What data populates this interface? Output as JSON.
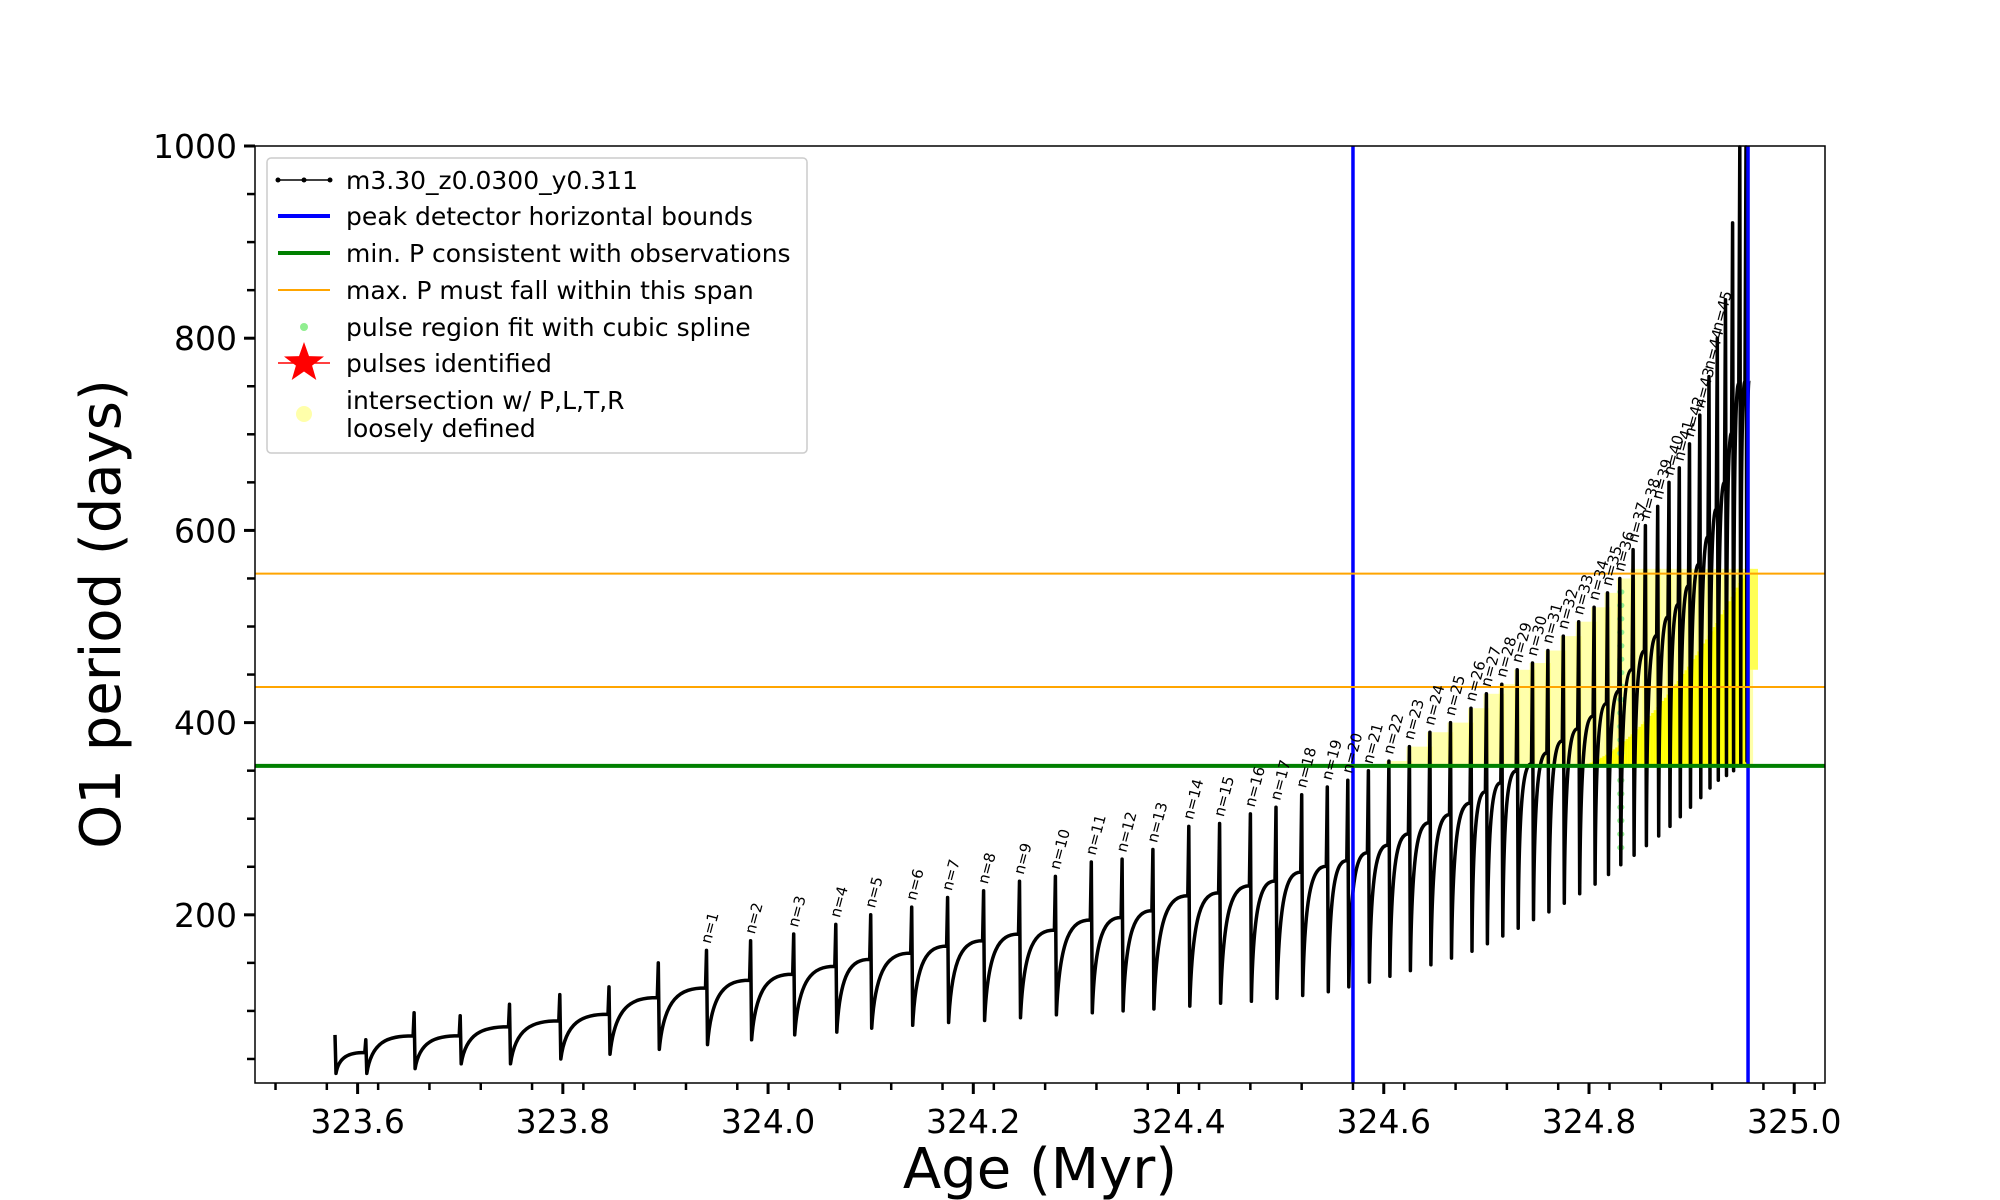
{
  "chart_data": {
    "type": "line",
    "title": "",
    "xlabel": "Age (Myr)",
    "ylabel": "O1 period (days)",
    "xlim": [
      323.5,
      325.03
    ],
    "ylim": [
      25,
      1000
    ],
    "x_ticks": [
      323.6,
      323.8,
      324.0,
      324.2,
      324.4,
      324.6,
      324.8,
      325.0
    ],
    "x_tick_labels": [
      "323.6",
      "323.8",
      "324.0",
      "324.2",
      "324.4",
      "324.6",
      "324.8",
      "325.0"
    ],
    "y_ticks": [
      200,
      400,
      600,
      800,
      1000
    ],
    "y_tick_labels": [
      "200",
      "400",
      "600",
      "800",
      "1000"
    ],
    "grid": false,
    "legend_position": "top-left",
    "legend": [
      {
        "label": "m3.30_z0.0300_y0.311",
        "style": "line-dots",
        "color": "#000000"
      },
      {
        "label": "peak detector horizontal bounds",
        "style": "line",
        "color": "#0000ff"
      },
      {
        "label": "min. P consistent with observations",
        "style": "line",
        "color": "#008000"
      },
      {
        "label": "max. P must fall within this span",
        "style": "thin-line",
        "color": "#ffa500"
      },
      {
        "label": "pulse region fit with cubic spline",
        "style": "dot",
        "color": "#90ee90"
      },
      {
        "label": "pulses identified",
        "style": "star",
        "color": "#ff0000"
      },
      {
        "label": "intersection w/ P,L,T,R",
        "label_line2": "loosely defined",
        "style": "circle",
        "color": "#ffffaa"
      }
    ],
    "vertical_lines": {
      "name": "peak detector horizontal bounds",
      "color": "#0000ff",
      "x": [
        324.57,
        324.955
      ]
    },
    "horizontal_lines": [
      {
        "name": "min. P consistent with observations",
        "color": "#008000",
        "y": 355
      },
      {
        "name": "max. P must fall within this span",
        "color": "#ffa500",
        "y": 437
      },
      {
        "name": "max. P must fall within this span",
        "color": "#ffa500",
        "y": 555
      }
    ],
    "pulse_labels": [
      "n=1",
      "n=2",
      "n=3",
      "n=4",
      "n=5",
      "n=6",
      "n=7",
      "n=8",
      "n=9",
      "n=10",
      "n=11",
      "n=12",
      "n=13",
      "n=14",
      "n=15",
      "n=16",
      "n=17",
      "n=18",
      "n=19",
      "n=20",
      "n=21",
      "n=22",
      "n=23",
      "n=24",
      "n=25",
      "n=26",
      "n=27",
      "n=28",
      "n=29",
      "n=30",
      "n=31",
      "n=32",
      "n=33",
      "n=34",
      "n=35",
      "n=36",
      "n=37",
      "n=38",
      "n=39",
      "n=40",
      "n=41",
      "n=42",
      "n=43",
      "n=44",
      "n=45"
    ],
    "pulses": [
      {
        "x": 323.578,
        "peak": 75,
        "trough": 35
      },
      {
        "x": 323.608,
        "peak": 70,
        "trough": 35
      },
      {
        "x": 323.655,
        "peak": 98,
        "trough": 40
      },
      {
        "x": 323.7,
        "peak": 95,
        "trough": 45
      },
      {
        "x": 323.748,
        "peak": 107,
        "trough": 45
      },
      {
        "x": 323.797,
        "peak": 117,
        "trough": 50
      },
      {
        "x": 323.845,
        "peak": 125,
        "trough": 55
      },
      {
        "x": 323.893,
        "peak": 150,
        "trough": 60
      },
      {
        "x": 323.94,
        "peak": 163,
        "trough": 65
      },
      {
        "x": 323.983,
        "peak": 173,
        "trough": 70
      },
      {
        "x": 324.025,
        "peak": 180,
        "trough": 75
      },
      {
        "x": 324.066,
        "peak": 190,
        "trough": 78
      },
      {
        "x": 324.1,
        "peak": 200,
        "trough": 82
      },
      {
        "x": 324.14,
        "peak": 208,
        "trough": 85
      },
      {
        "x": 324.175,
        "peak": 218,
        "trough": 88
      },
      {
        "x": 324.21,
        "peak": 225,
        "trough": 90
      },
      {
        "x": 324.245,
        "peak": 235,
        "trough": 93
      },
      {
        "x": 324.28,
        "peak": 240,
        "trough": 96
      },
      {
        "x": 324.315,
        "peak": 255,
        "trough": 98
      },
      {
        "x": 324.345,
        "peak": 258,
        "trough": 100
      },
      {
        "x": 324.375,
        "peak": 268,
        "trough": 102
      },
      {
        "x": 324.41,
        "peak": 292,
        "trough": 105
      },
      {
        "x": 324.44,
        "peak": 295,
        "trough": 108
      },
      {
        "x": 324.47,
        "peak": 305,
        "trough": 110
      },
      {
        "x": 324.495,
        "peak": 312,
        "trough": 113
      },
      {
        "x": 324.52,
        "peak": 325,
        "trough": 116
      },
      {
        "x": 324.545,
        "peak": 333,
        "trough": 120
      },
      {
        "x": 324.565,
        "peak": 340,
        "trough": 125
      },
      {
        "x": 324.585,
        "peak": 350,
        "trough": 130
      },
      {
        "x": 324.605,
        "peak": 360,
        "trough": 136
      },
      {
        "x": 324.625,
        "peak": 375,
        "trough": 142
      },
      {
        "x": 324.645,
        "peak": 390,
        "trough": 148
      },
      {
        "x": 324.665,
        "peak": 400,
        "trough": 155
      },
      {
        "x": 324.685,
        "peak": 415,
        "trough": 162
      },
      {
        "x": 324.7,
        "peak": 430,
        "trough": 170
      },
      {
        "x": 324.715,
        "peak": 440,
        "trough": 178
      },
      {
        "x": 324.73,
        "peak": 455,
        "trough": 186
      },
      {
        "x": 324.745,
        "peak": 462,
        "trough": 195
      },
      {
        "x": 324.76,
        "peak": 475,
        "trough": 203
      },
      {
        "x": 324.775,
        "peak": 490,
        "trough": 212
      },
      {
        "x": 324.79,
        "peak": 505,
        "trough": 222
      },
      {
        "x": 324.805,
        "peak": 520,
        "trough": 232
      },
      {
        "x": 324.818,
        "peak": 535,
        "trough": 242
      },
      {
        "x": 324.83,
        "peak": 550,
        "trough": 252
      },
      {
        "x": 324.843,
        "peak": 580,
        "trough": 262
      },
      {
        "x": 324.855,
        "peak": 605,
        "trough": 272
      },
      {
        "x": 324.867,
        "peak": 625,
        "trough": 282
      },
      {
        "x": 324.878,
        "peak": 650,
        "trough": 292
      },
      {
        "x": 324.888,
        "peak": 665,
        "trough": 302
      },
      {
        "x": 324.898,
        "peak": 690,
        "trough": 312
      },
      {
        "x": 324.908,
        "peak": 720,
        "trough": 322
      },
      {
        "x": 324.917,
        "peak": 760,
        "trough": 332
      },
      {
        "x": 324.925,
        "peak": 800,
        "trough": 340
      },
      {
        "x": 324.933,
        "peak": 840,
        "trough": 345
      },
      {
        "x": 324.94,
        "peak": 920,
        "trough": 350
      },
      {
        "x": 324.947,
        "peak": 1000,
        "trough": 355
      },
      {
        "x": 324.953,
        "peak": 1000,
        "trough": 360
      }
    ]
  }
}
